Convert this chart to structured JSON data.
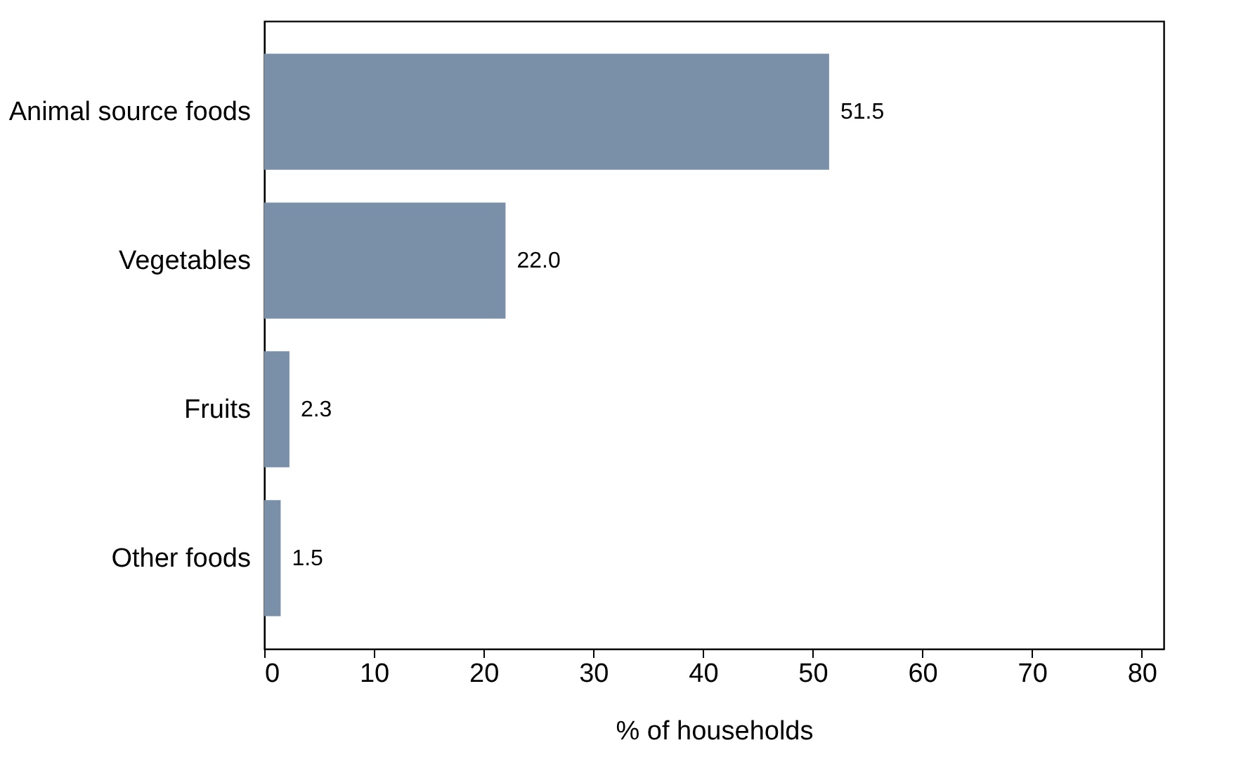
{
  "chart_data": {
    "type": "bar",
    "orientation": "horizontal",
    "xlabel": "% of households",
    "categories": [
      "Animal source foods",
      "Vegetables",
      "Fruits",
      "Other foods"
    ],
    "values": [
      51.5,
      22.0,
      2.3,
      1.5
    ],
    "value_labels": [
      "51.5",
      "22.0",
      "2.3",
      "1.5"
    ],
    "color": "#7a8fa8",
    "xlim": [
      0,
      82
    ],
    "xticks": [
      0,
      10,
      20,
      30,
      40,
      50,
      60,
      70,
      80
    ],
    "grid": false
  }
}
